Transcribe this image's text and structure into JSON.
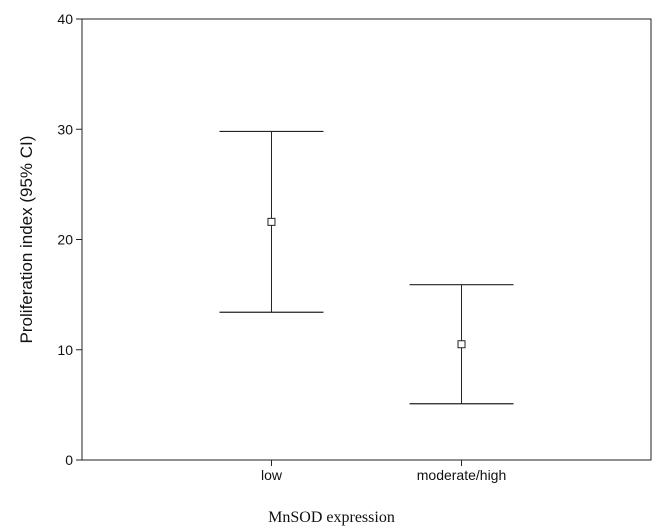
{
  "chart_data": {
    "type": "errorbar",
    "categories": [
      "low",
      "moderate/high"
    ],
    "series": [
      {
        "values": [
          21.6,
          10.5
        ],
        "ci_lower": [
          13.4,
          5.1
        ],
        "ci_upper": [
          29.8,
          15.9
        ]
      }
    ],
    "title": "",
    "xlabel": "MnSOD expression",
    "ylabel": "Proliferation index (95% CI)",
    "ylim": [
      0,
      40
    ],
    "yticks": [
      0,
      10,
      20,
      30,
      40
    ],
    "grid": false,
    "legend": "none"
  }
}
